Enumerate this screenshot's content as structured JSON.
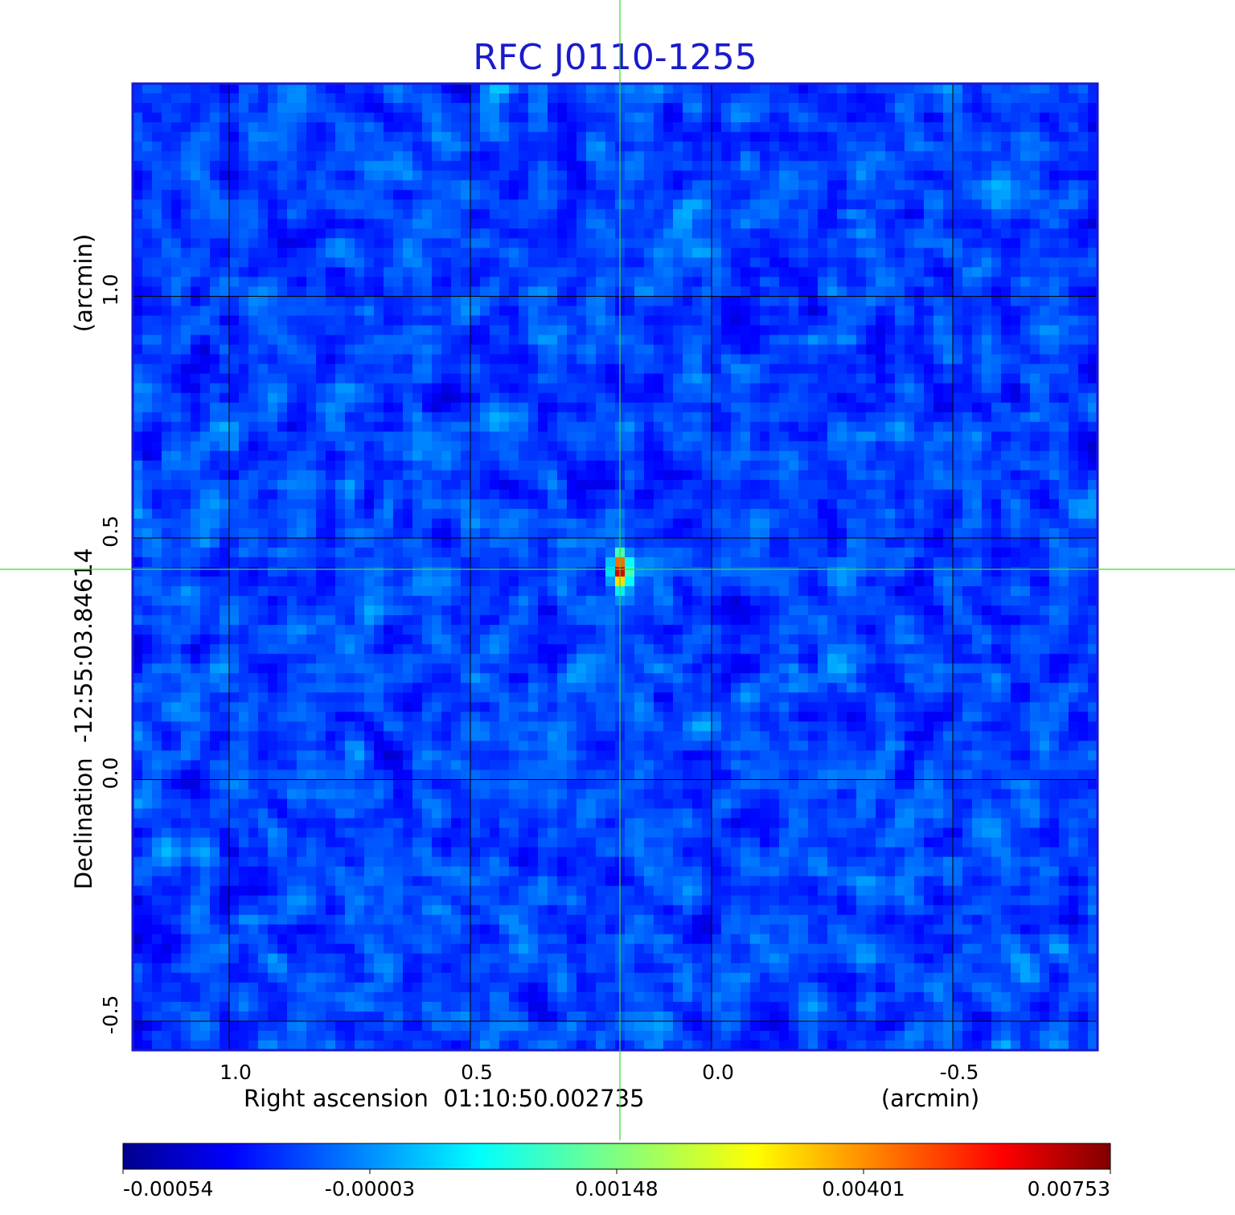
{
  "chart_data": {
    "type": "heatmap",
    "title": "RFC J0110-1255",
    "xlabel": "Right ascension  01:10:50.002735",
    "xunit": "(arcmin)",
    "ylabel": "Declination  -12:55:03.84614",
    "yunit": "(arcmin)",
    "xlim": [
      1.2,
      -0.8
    ],
    "ylim": [
      -0.56,
      1.44
    ],
    "x_ticks": [
      "1.0",
      "0.5",
      "0.0",
      "-0.5"
    ],
    "x_tick_values": [
      1.0,
      0.5,
      0.0,
      -0.5
    ],
    "y_ticks": [
      "-0.5",
      "0.0",
      "0.5",
      "1.0"
    ],
    "y_tick_values": [
      -0.5,
      0.0,
      0.5,
      1.0
    ],
    "grid": true,
    "crosshair": {
      "x": 0.19,
      "y": 0.435,
      "color": "#33dd33"
    },
    "source": {
      "x": 0.19,
      "y": 0.435,
      "peak": 0.00753
    },
    "colormap": "jet",
    "colorbar": {
      "orientation": "horizontal",
      "tick_labels": [
        "-0.00054",
        "-0.00003",
        "0.00148",
        "0.00401",
        "0.00753"
      ],
      "tick_values": [
        -0.00054,
        -3e-05,
        0.00148,
        0.00401,
        0.00753
      ]
    },
    "frame_color": "#1a1acc",
    "grid_color": "#000000"
  }
}
